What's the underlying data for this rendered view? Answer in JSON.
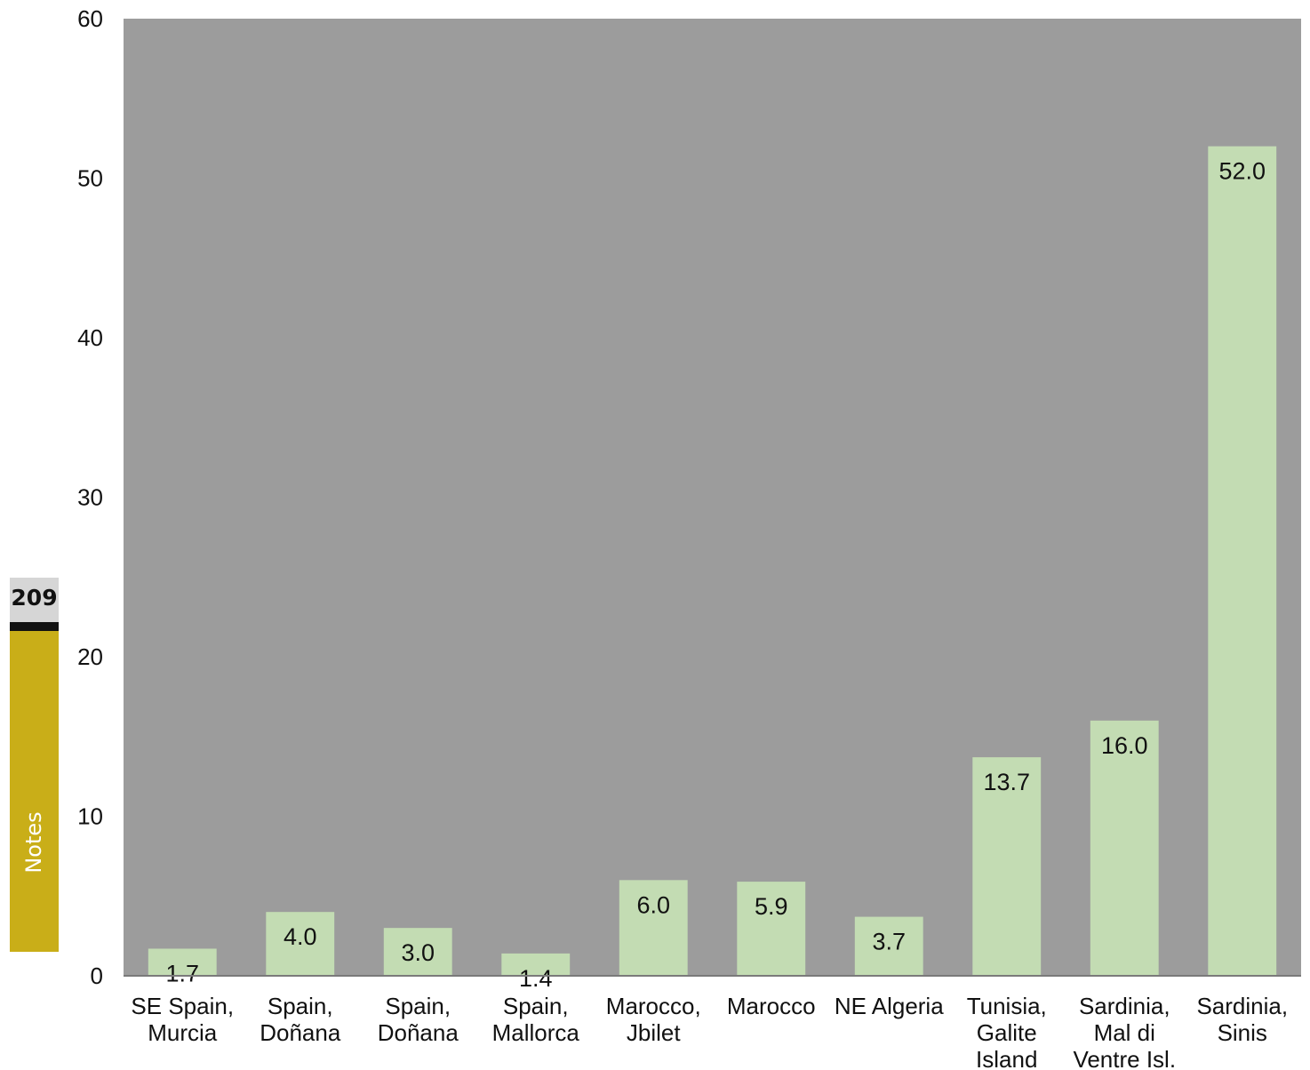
{
  "side_tab": {
    "page_number": "209",
    "label": "Notes"
  },
  "colors": {
    "plot_background": "#9c9c9c",
    "bar_fill": "#c3dcb3",
    "tab_body": "#c9ae18",
    "tab_header": "#d6d6d6"
  },
  "chart_data": {
    "type": "bar",
    "title": "",
    "xlabel": "",
    "ylabel": "",
    "ylim": [
      0,
      60
    ],
    "yticks": [
      0,
      10,
      20,
      30,
      40,
      50,
      60
    ],
    "grid": false,
    "legend": "none",
    "categories": [
      [
        "SE Spain,",
        "Murcia"
      ],
      [
        "Spain,",
        "Doñana"
      ],
      [
        "Spain,",
        "Doñana"
      ],
      [
        "Spain,",
        "Mallorca"
      ],
      [
        "Marocco,",
        "Jbilet"
      ],
      [
        "Marocco"
      ],
      [
        "NE Algeria"
      ],
      [
        "Tunisia,",
        "Galite",
        "Island"
      ],
      [
        "Sardinia,",
        "Mal di",
        "Ventre Isl."
      ],
      [
        "Sardinia,",
        "Sinis"
      ]
    ],
    "values": [
      1.7,
      4.0,
      3.0,
      1.4,
      6.0,
      5.9,
      3.7,
      13.7,
      16.0,
      52.0
    ],
    "data_labels": [
      "1.7",
      "4.0",
      "3.0",
      "1.4",
      "6.0",
      "5.9",
      "3.7",
      "13.7",
      "16.0",
      "52.0"
    ]
  }
}
